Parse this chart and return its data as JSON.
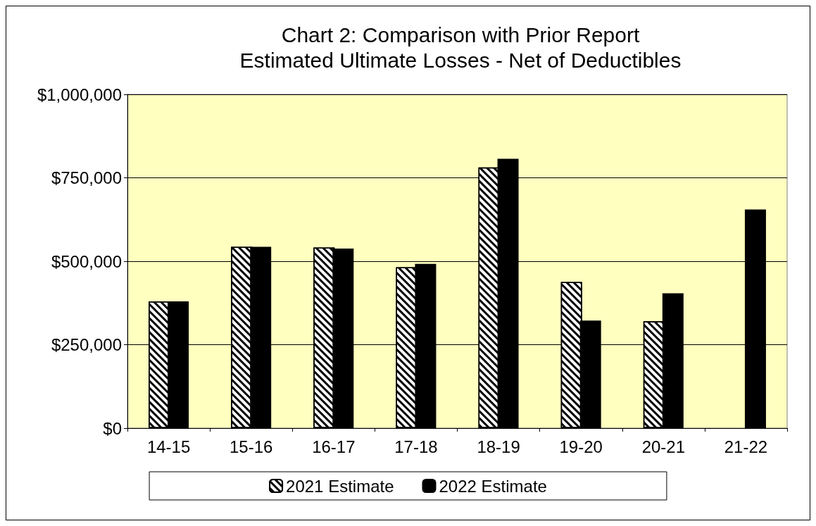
{
  "chart_data": {
    "type": "bar",
    "title": "Chart 2: Comparison with Prior Report",
    "subtitle": "Estimated Ultimate Losses - Net of Deductibles",
    "categories": [
      "14-15",
      "15-16",
      "16-17",
      "17-18",
      "18-19",
      "19-20",
      "20-21",
      "21-22"
    ],
    "series": [
      {
        "name": "2021 Estimate",
        "color": "#ffffff",
        "values": [
          380000,
          543000,
          541000,
          482000,
          781000,
          438000,
          320000,
          null
        ]
      },
      {
        "name": "2022 Estimate",
        "color": "#000000",
        "values": [
          380000,
          543000,
          538000,
          492000,
          807000,
          322000,
          404000,
          655000
        ]
      }
    ],
    "ylim": [
      0,
      1000000
    ],
    "yticks": [
      {
        "value": 0,
        "label": "$0"
      },
      {
        "value": 250000,
        "label": "$250,000"
      },
      {
        "value": 500000,
        "label": "$500,000"
      },
      {
        "value": 750000,
        "label": "$750,000"
      },
      {
        "value": 1000000,
        "label": "$1,000,000"
      }
    ],
    "grid": "y",
    "legend": "bottom"
  }
}
